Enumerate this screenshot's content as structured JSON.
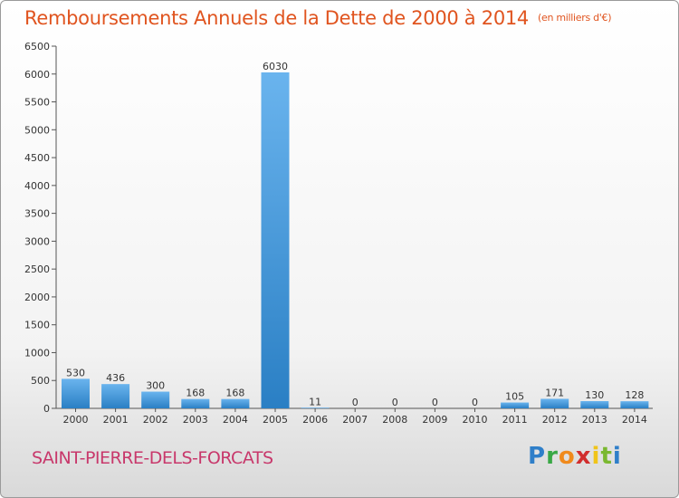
{
  "title": "Remboursements Annuels de la Dette de 2000 à 2014",
  "unit": "(en milliers d'€)",
  "commune": "SAINT-PIERRE-DELS-FORCATS",
  "logo": {
    "p": "P",
    "r": "r",
    "o": "o",
    "x": "x",
    "i1": "i",
    "t": "t",
    "i2": "i"
  },
  "colors": {
    "title": "#e0541f",
    "bar_top": "#6ab4ee",
    "bar_bottom": "#2a7fc4",
    "commune": "#c8386b"
  },
  "chart_data": {
    "type": "bar",
    "title": "Remboursements Annuels de la Dette de 2000 à 2014",
    "xlabel": "",
    "ylabel": "",
    "ylim": [
      0,
      6500
    ],
    "yticks": [
      0,
      500,
      1000,
      1500,
      2000,
      2500,
      3000,
      3500,
      4000,
      4500,
      5000,
      5500,
      6000,
      6500
    ],
    "grid": false,
    "categories": [
      "2000",
      "2001",
      "2002",
      "2003",
      "2004",
      "2005",
      "2006",
      "2007",
      "2008",
      "2009",
      "2010",
      "2011",
      "2012",
      "2013",
      "2014"
    ],
    "values": [
      530,
      436,
      300,
      168,
      168,
      6030,
      11,
      0,
      0,
      0,
      0,
      105,
      171,
      130,
      128
    ],
    "data_labels": [
      "530",
      "436",
      "300",
      "168",
      "168",
      "6030",
      "11",
      "0",
      "0",
      "0",
      "0",
      "105",
      "171",
      "130",
      "128"
    ]
  }
}
